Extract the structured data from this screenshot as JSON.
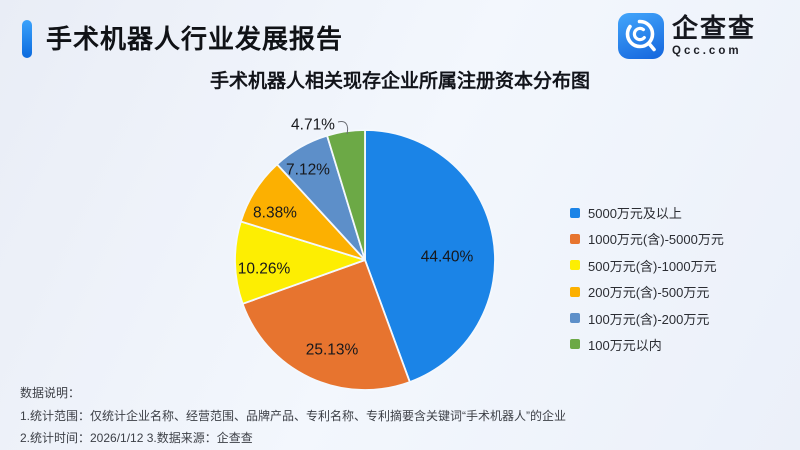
{
  "header": {
    "title": "手术机器人行业发展报告",
    "logo": {
      "name": "企查查",
      "domain": "Qcc.com",
      "icon": "qcc-magnifier-icon",
      "icon_color": "#2a8bf2"
    }
  },
  "chart": {
    "title": "手术机器人相关现存企业所属注册资本分布图"
  },
  "chart_data": {
    "type": "pie",
    "title": "手术机器人相关现存企业所属注册资本分布图",
    "categories": [
      "5000万元及以上",
      "1000万元(含)-5000万元",
      "500万元(含)-1000万元",
      "200万元(含)-500万元",
      "100万元(含)-200万元",
      "100万元以内"
    ],
    "values": [
      44.4,
      25.13,
      10.26,
      8.38,
      7.12,
      4.71
    ],
    "labels": [
      "44.40%",
      "25.13%",
      "10.26%",
      "8.38%",
      "7.12%",
      "4.71%"
    ],
    "colors": [
      "#1b84e7",
      "#e7742f",
      "#fdee02",
      "#fcb001",
      "#5d8fc9",
      "#6ca946"
    ],
    "start_angle_deg": 0,
    "direction": "clockwise",
    "legend_position": "right",
    "slice_border_color": "#f4f8fd"
  },
  "notes": {
    "heading": "数据说明：",
    "line1": "1.统计范围：仅统计企业名称、经营范围、品牌产品、专利名称、专利摘要含关键词“手术机器人”的企业",
    "line2": "2.统计时间：2026/1/12  3.数据来源：企查查"
  }
}
